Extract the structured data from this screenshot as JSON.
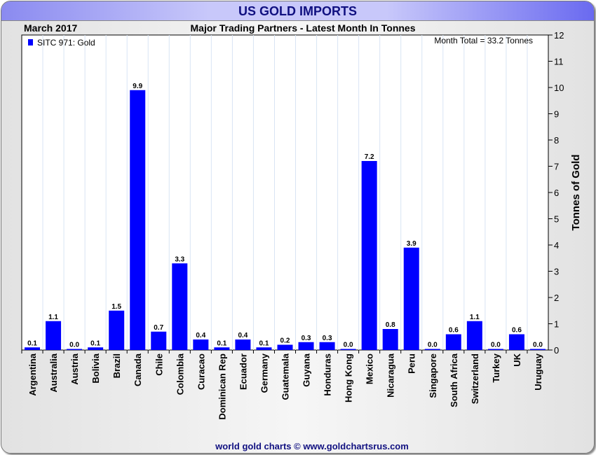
{
  "header": {
    "title": "US GOLD IMPORTS"
  },
  "footer": {
    "credit": "world gold charts © www.goldchartsrus.com"
  },
  "chart_data": {
    "type": "bar",
    "title": "Major Trading Partners - Latest Month In Tonnes",
    "period": "March 2017",
    "annotation": "Month Total = 33.2 Tonnes",
    "legend": [
      "SITC 971: Gold"
    ],
    "legend_position": "top-left",
    "xlabel": "",
    "ylabel": "Tonnes of Gold",
    "ylim": [
      0,
      12
    ],
    "yticks": [
      0,
      1,
      2,
      3,
      4,
      5,
      6,
      7,
      8,
      9,
      10,
      11,
      12
    ],
    "grid": true,
    "bar_color": "#0000ff",
    "categories": [
      "Argentina",
      "Australia",
      "Austria",
      "Bolivia",
      "Brazil",
      "Canada",
      "Chile",
      "Colombia",
      "Curacao",
      "Dominican Rep",
      "Ecuador",
      "Germany",
      "Guatemala",
      "Guyana",
      "Honduras",
      "Hong Kong",
      "Mexico",
      "Nicaragua",
      "Peru",
      "Singapore",
      "South Africa",
      "Switzerland",
      "Turkey",
      "UK",
      "Uruguay"
    ],
    "values": [
      0.1,
      1.1,
      0.0,
      0.1,
      1.5,
      9.9,
      0.7,
      3.3,
      0.4,
      0.1,
      0.4,
      0.1,
      0.2,
      0.3,
      0.3,
      0.0,
      7.2,
      0.8,
      3.9,
      0.0,
      0.6,
      1.1,
      0.0,
      0.6,
      0.0
    ],
    "data_labels": [
      "0.1",
      "1.1",
      "0.0",
      "0.1",
      "1.5",
      "9.9",
      "0.7",
      "3.3",
      "0.4",
      "0.1",
      "0.4",
      "0.1",
      "0.2",
      "0.3",
      "0.3",
      "0.0",
      "7.2",
      "0.8",
      "3.9",
      "0.0",
      "0.6",
      "1.1",
      "0.0",
      "0.6",
      "0.0"
    ]
  }
}
